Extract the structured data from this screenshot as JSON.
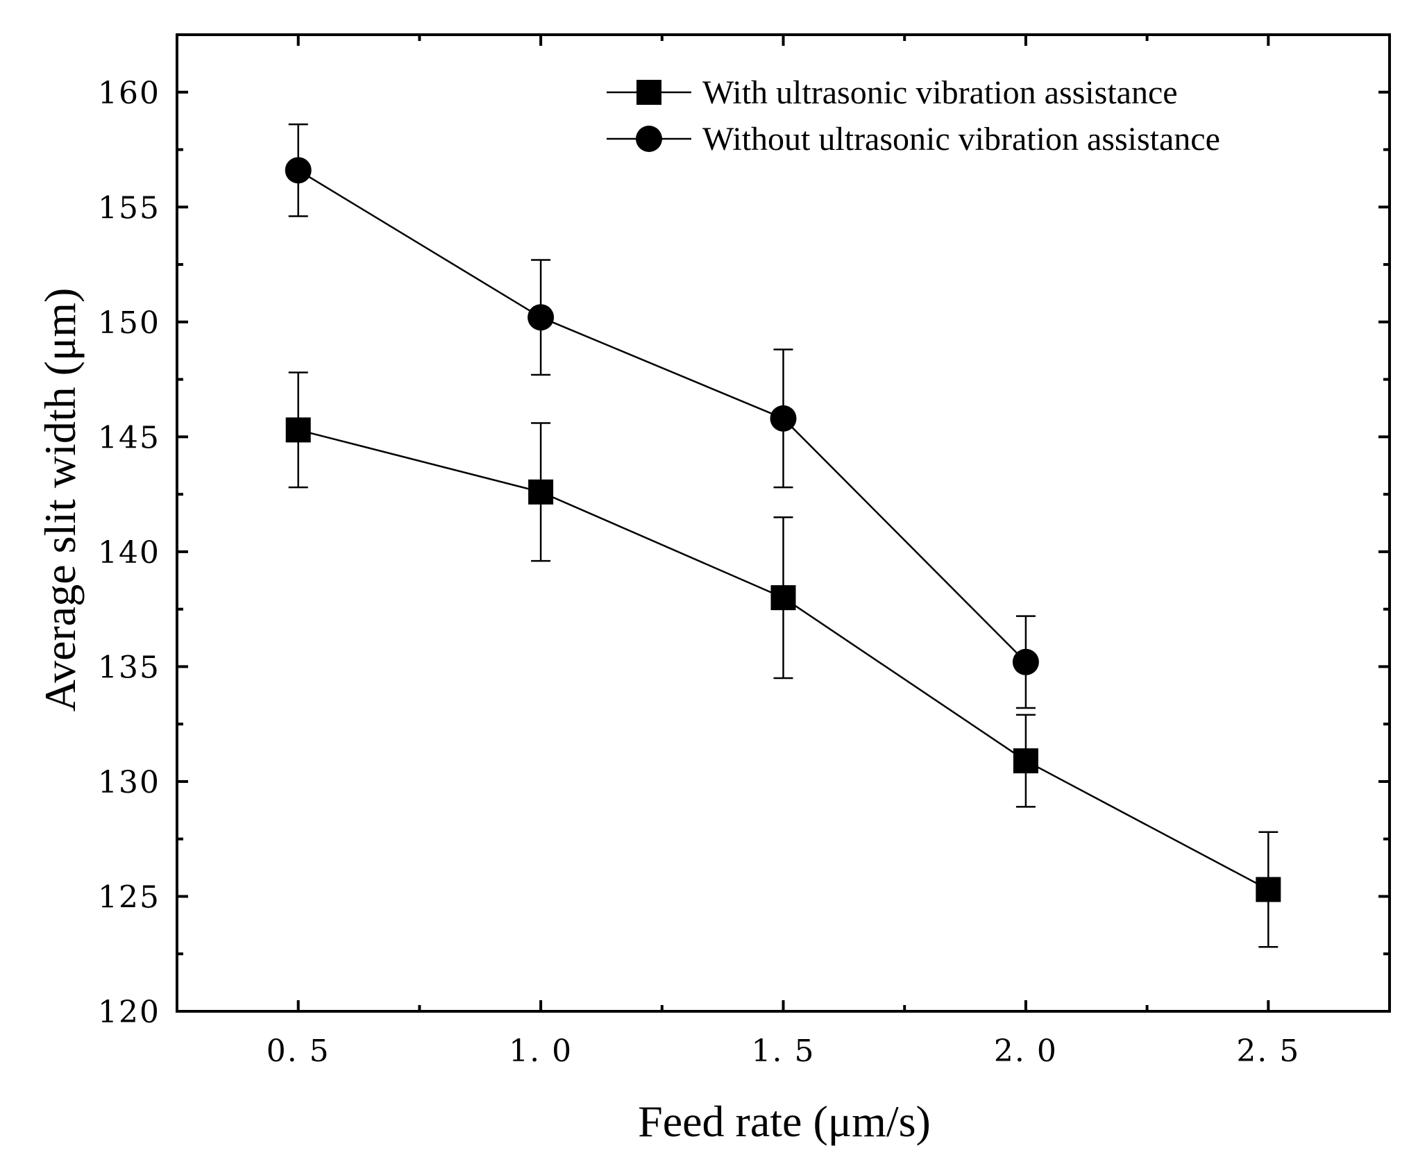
{
  "chart_data": {
    "type": "line",
    "xlabel": "Feed rate (μm/s)",
    "ylabel": "Average slit width (μm)",
    "xlim": [
      0.25,
      2.75
    ],
    "ylim": [
      120,
      162.5
    ],
    "x_ticks": [
      "0. 5",
      "1. 0",
      "1. 5",
      "2. 0",
      "2. 5"
    ],
    "x_tick_values": [
      0.5,
      1.0,
      1.5,
      2.0,
      2.5
    ],
    "x_minor_ticks": [
      0.75,
      1.25,
      1.75,
      2.25
    ],
    "y_ticks": [
      "120",
      "125",
      "130",
      "135",
      "140",
      "145",
      "150",
      "155",
      "160"
    ],
    "y_tick_values": [
      120,
      125,
      130,
      135,
      140,
      145,
      150,
      155,
      160
    ],
    "y_minor_ticks": [
      122.5,
      127.5,
      132.5,
      137.5,
      142.5,
      147.5,
      152.5,
      157.5
    ],
    "grid": false,
    "legend_position": "top-right",
    "series": [
      {
        "name": "With ultrasonic vibration assistance",
        "marker": "square",
        "color": "#000000",
        "x": [
          0.5,
          1.0,
          1.5,
          2.0,
          2.5
        ],
        "y": [
          145.3,
          142.6,
          138.0,
          130.9,
          125.3
        ],
        "error": [
          2.5,
          3.0,
          3.5,
          2.0,
          2.5
        ]
      },
      {
        "name": "Without ultrasonic vibration assistance",
        "marker": "circle",
        "color": "#000000",
        "x": [
          0.5,
          1.0,
          1.5,
          2.0
        ],
        "y": [
          156.6,
          150.2,
          145.8,
          135.2
        ],
        "error": [
          2.0,
          2.5,
          3.0,
          2.0
        ]
      }
    ]
  }
}
